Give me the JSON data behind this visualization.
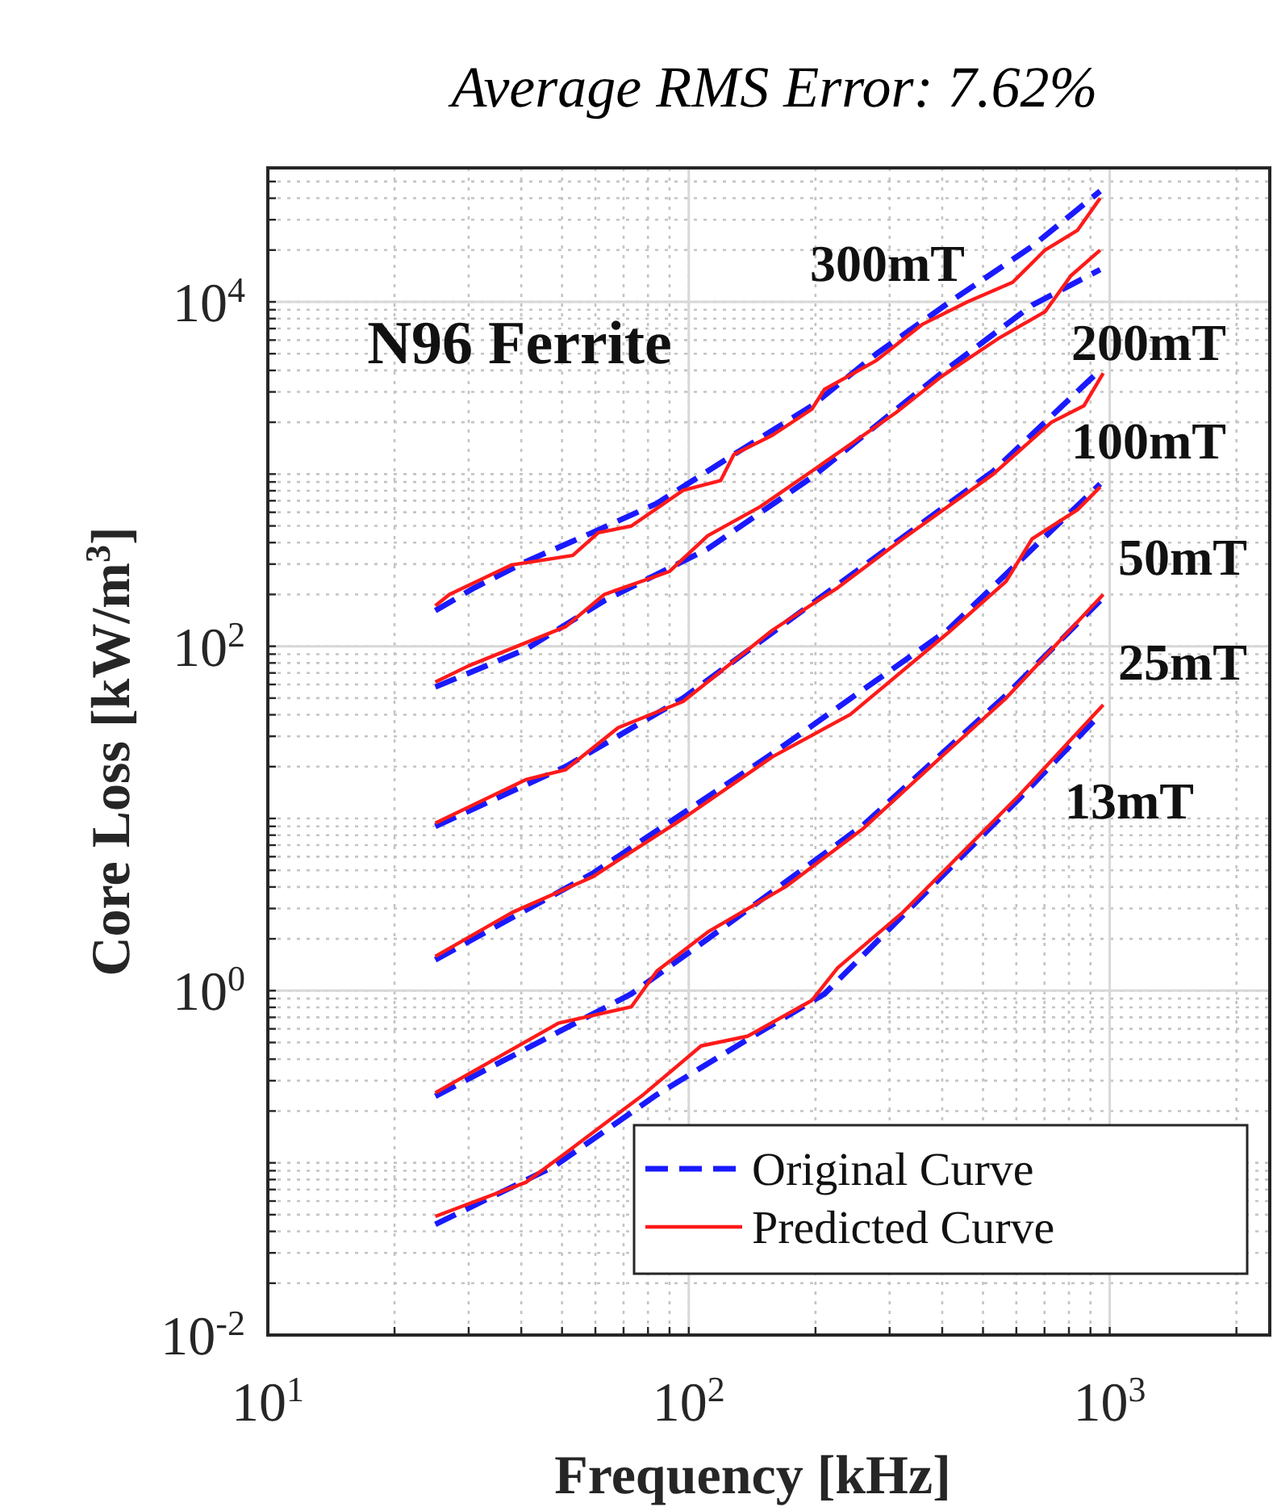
{
  "chart_data": {
    "type": "line",
    "title": "Average RMS Error: 7.62%",
    "xlabel": "Frequency [kHz]",
    "ylabel": "Core Loss [kW/m$^{3}$]",
    "log": "xy",
    "grid": true,
    "legend": "bottom right",
    "xlim": [
      10,
      2400
    ],
    "ylim": [
      0.01,
      60000
    ],
    "xticks": [
      {
        "value": 10,
        "label": "10$^{1}$"
      },
      {
        "value": 100,
        "label": "10$^{2}$"
      },
      {
        "value": 1000,
        "label": "10$^{3}$"
      }
    ],
    "yticks": [
      {
        "value": 0.01,
        "label": "10$^{-2}$"
      },
      {
        "value": 1,
        "label": "10$^{0}$"
      },
      {
        "value": 100,
        "label": "10$^{2}$"
      },
      {
        "value": 10000,
        "label": "10$^{4}$"
      }
    ],
    "annotations": [
      "N96 Ferrite",
      "300mT",
      "200mT",
      "100mT",
      "50mT",
      "25mT",
      "13mT"
    ],
    "series": [
      {
        "name": "Original Curve",
        "color": "#1a1aff",
        "line_style": "dashed",
        "x": [
          25,
          31,
          41,
          59,
          84,
          128,
          196,
          279,
          427,
          654,
          949
        ],
        "values": [
          161,
          219,
          310,
          457,
          676,
          1300,
          2490,
          4990,
          10400,
          21000,
          44000
        ]
      },
      {
        "color": "#1a1aff",
        "line_style": "dashed",
        "x": [
          25,
          41,
          63,
          111,
          196,
          398,
          654,
          949
        ],
        "values": [
          58,
          96,
          184,
          368,
          958,
          3850,
          9570,
          15400
        ]
      },
      {
        "color": "#1a1aff",
        "line_style": "dashed",
        "x": [
          25,
          51,
          97,
          226,
          529,
          949
        ],
        "values": [
          9,
          20,
          50,
          228,
          1040,
          4020
        ]
      },
      {
        "color": "#1a1aff",
        "line_style": "dashed",
        "x": [
          25,
          59,
          158,
          412,
          949
        ],
        "values": [
          1.51,
          4.78,
          23.8,
          124,
          877
        ]
      },
      {
        "color": "#1a1aff",
        "line_style": "dashed",
        "x": [
          25,
          73,
          111,
          260,
          567,
          949
        ],
        "values": [
          0.244,
          0.957,
          2.0,
          9.17,
          52,
          184
        ]
      },
      {
        "color": "#1a1aff",
        "line_style": "dashed",
        "x": [
          25,
          48,
          84,
          138,
          210,
          322,
          609,
          949
        ],
        "values": [
          0.0439,
          0.0957,
          0.249,
          0.521,
          0.957,
          2.72,
          13,
          40.2
        ]
      },
      {
        "name": "Predicted Curve",
        "color": "#ff1a1a",
        "line_style": "solid",
        "x": [
          25,
          27,
          38,
          53,
          61,
          73,
          97,
          119,
          128,
          158,
          196,
          210,
          279,
          358,
          459,
          588,
          702,
          838,
          949
        ],
        "values": [
          172,
          200,
          297,
          337,
          457,
          499,
          805,
          916,
          1300,
          1680,
          2380,
          3100,
          4570,
          7380,
          10000,
          13000,
          20000,
          26000,
          40000
        ]
      },
      {
        "color": "#ff1a1a",
        "line_style": "solid",
        "x": [
          25,
          30,
          51,
          63,
          90,
          111,
          148,
          196,
          311,
          398,
          548,
          702,
          809,
          949
        ],
        "values": [
          62,
          77,
          130,
          200,
          272,
          439,
          647,
          1040,
          2280,
          3680,
          6200,
          8770,
          14200,
          20000
        ]
      },
      {
        "color": "#ff1a1a",
        "line_style": "solid",
        "x": [
          25,
          41,
          51,
          68,
          97,
          158,
          226,
          322,
          529,
          727,
          868,
          965
        ],
        "values": [
          9.4,
          16.8,
          19.2,
          33.7,
          47.8,
          124,
          219,
          420,
          1000,
          2000,
          2490,
          3850
        ]
      },
      {
        "color": "#ff1a1a",
        "line_style": "solid",
        "x": [
          25,
          38,
          59,
          97,
          158,
          242,
          412,
          567,
          654,
          838,
          949
        ],
        "values": [
          1.58,
          2.84,
          4.57,
          10,
          22.8,
          40.2,
          119,
          238,
          420,
          620,
          841
        ]
      },
      {
        "color": "#ff1a1a",
        "line_style": "solid",
        "x": [
          25,
          49,
          73,
          84,
          111,
          170,
          260,
          398,
          567,
          965
        ],
        "values": [
          0.255,
          0.647,
          0.805,
          1.3,
          2.19,
          4.02,
          8.77,
          22.8,
          49.9,
          200
        ]
      },
      {
        "color": "#ff1a1a",
        "line_style": "solid",
        "x": [
          25,
          41,
          51,
          78,
          107,
          138,
          196,
          226,
          322,
          427,
          609,
          965
        ],
        "values": [
          0.0489,
          0.077,
          0.114,
          0.249,
          0.478,
          0.544,
          0.877,
          1.36,
          2.84,
          5.69,
          13.6,
          45.7
        ]
      }
    ]
  }
}
